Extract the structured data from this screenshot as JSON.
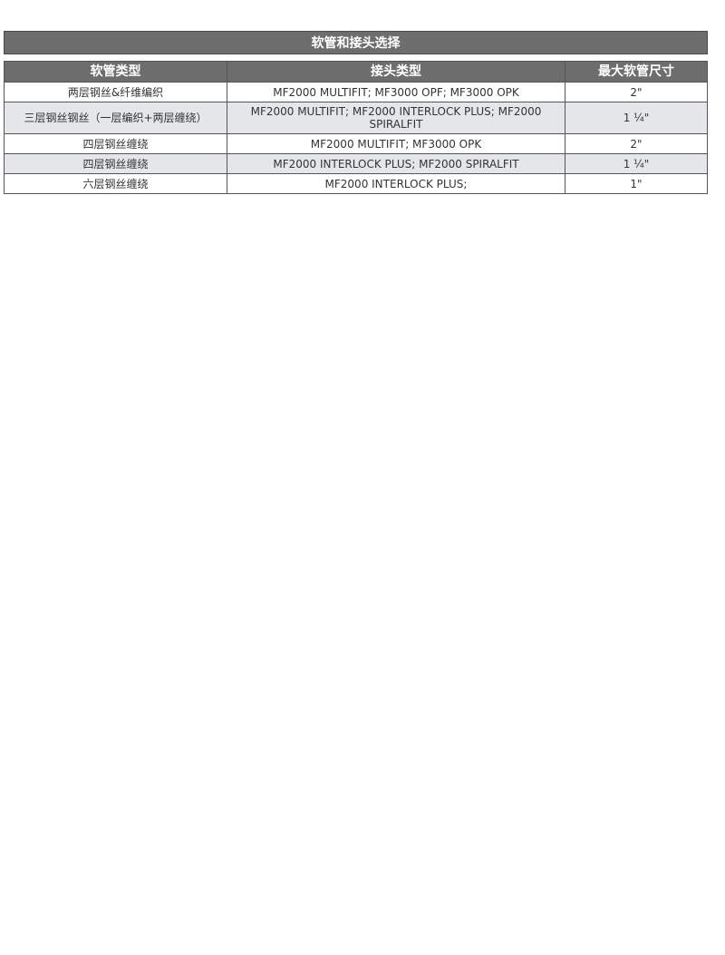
{
  "title": "软管和接头选择",
  "table": {
    "headers": [
      "软管类型",
      "接头类型",
      "最大软管尺寸"
    ],
    "rows": [
      [
        "两层钢丝&纤维编织",
        "MF2000 MULTIFIT; MF3000 OPF; MF3000 OPK",
        "2\""
      ],
      [
        "三层钢丝钢丝（一层编织+两层缠绕）",
        "MF2000 MULTIFIT; MF2000 INTERLOCK PLUS; MF2000 SPIRALFIT",
        "1 ¼\""
      ],
      [
        "四层钢丝缠绕",
        "MF2000 MULTIFIT;  MF3000 OPK",
        "2\""
      ],
      [
        "四层钢丝缠绕",
        "MF2000 INTERLOCK PLUS; MF2000 SPIRALFIT",
        "1 ¼\""
      ],
      [
        "六层钢丝缠绕",
        "MF2000 INTERLOCK PLUS;",
        "1\""
      ]
    ]
  }
}
